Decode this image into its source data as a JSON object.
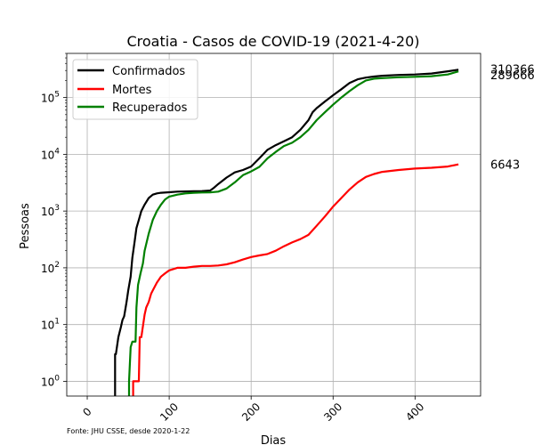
{
  "chart_data": {
    "type": "line",
    "title": "Croatia - Casos de COVID-19 (2021-4-20)",
    "xlabel": "Dias",
    "ylabel": "Pessoas",
    "yscale": "log",
    "xlim": [
      -25,
      480
    ],
    "ylim": [
      0.55,
      600000
    ],
    "xticks": [
      0,
      100,
      200,
      300,
      400
    ],
    "yticks": [
      {
        "value": 1,
        "label": "10^0"
      },
      {
        "value": 10,
        "label": "10^1"
      },
      {
        "value": 100,
        "label": "10^2"
      },
      {
        "value": 1000,
        "label": "10^3"
      },
      {
        "value": 10000,
        "label": "10^4"
      },
      {
        "value": 100000,
        "label": "10^5"
      }
    ],
    "grid": true,
    "legend_position": "top-left",
    "footnote": "Fonte: JHU CSSE, desde 2020-1-22",
    "series": [
      {
        "name": "Confirmados",
        "color": "#000000",
        "end_label": "310366",
        "x": [
          34,
          34,
          35,
          38,
          41,
          43,
          45,
          48,
          50,
          53,
          55,
          58,
          60,
          63,
          66,
          70,
          75,
          80,
          85,
          90,
          100,
          110,
          120,
          130,
          140,
          150,
          155,
          160,
          170,
          180,
          190,
          200,
          210,
          220,
          230,
          240,
          250,
          260,
          270,
          275,
          280,
          290,
          300,
          310,
          320,
          330,
          340,
          350,
          360,
          380,
          400,
          420,
          440,
          453
        ],
        "y": [
          0.5,
          3,
          3,
          6,
          9,
          12,
          14,
          25,
          40,
          70,
          150,
          300,
          500,
          700,
          1000,
          1300,
          1700,
          1950,
          2050,
          2100,
          2150,
          2200,
          2220,
          2240,
          2250,
          2300,
          2600,
          3000,
          3900,
          4800,
          5300,
          6100,
          8500,
          12000,
          14500,
          17000,
          20000,
          27000,
          40000,
          55000,
          65000,
          85000,
          110000,
          140000,
          180000,
          210000,
          225000,
          235000,
          242000,
          250000,
          255000,
          265000,
          290000,
          310366
        ]
      },
      {
        "name": "Mortes",
        "color": "#ff0000",
        "end_label": "6643",
        "x": [
          56,
          56,
          58,
          63,
          64,
          66,
          70,
          72,
          75,
          78,
          80,
          85,
          90,
          95,
          100,
          110,
          120,
          130,
          140,
          150,
          160,
          170,
          180,
          190,
          200,
          210,
          220,
          230,
          240,
          250,
          260,
          270,
          280,
          290,
          300,
          310,
          320,
          330,
          340,
          350,
          360,
          380,
          400,
          420,
          440,
          453
        ],
        "y": [
          0.5,
          1,
          1,
          1,
          6,
          6,
          15,
          20,
          25,
          35,
          40,
          55,
          70,
          80,
          90,
          100,
          100,
          105,
          108,
          108,
          110,
          115,
          125,
          140,
          155,
          165,
          175,
          200,
          240,
          280,
          320,
          380,
          550,
          800,
          1200,
          1700,
          2400,
          3200,
          4000,
          4500,
          4900,
          5300,
          5600,
          5800,
          6100,
          6643
        ]
      },
      {
        "name": "Recuperados",
        "color": "#008000",
        "end_label": "289666",
        "x": [
          51,
          51,
          53,
          55,
          59,
          60,
          62,
          65,
          68,
          70,
          75,
          80,
          85,
          90,
          95,
          100,
          110,
          120,
          130,
          140,
          150,
          160,
          170,
          180,
          190,
          200,
          210,
          220,
          230,
          240,
          250,
          260,
          270,
          280,
          290,
          300,
          310,
          320,
          330,
          340,
          350,
          360,
          380,
          400,
          420,
          440,
          453
        ],
        "y": [
          0.5,
          1,
          4,
          5,
          5,
          20,
          50,
          80,
          120,
          200,
          400,
          700,
          1000,
          1300,
          1600,
          1800,
          1950,
          2050,
          2100,
          2120,
          2130,
          2200,
          2500,
          3200,
          4300,
          5000,
          6000,
          8500,
          11000,
          14000,
          16000,
          20000,
          27000,
          40000,
          55000,
          75000,
          100000,
          130000,
          165000,
          200000,
          215000,
          220000,
          228000,
          232000,
          238000,
          255000,
          289666
        ]
      }
    ]
  }
}
